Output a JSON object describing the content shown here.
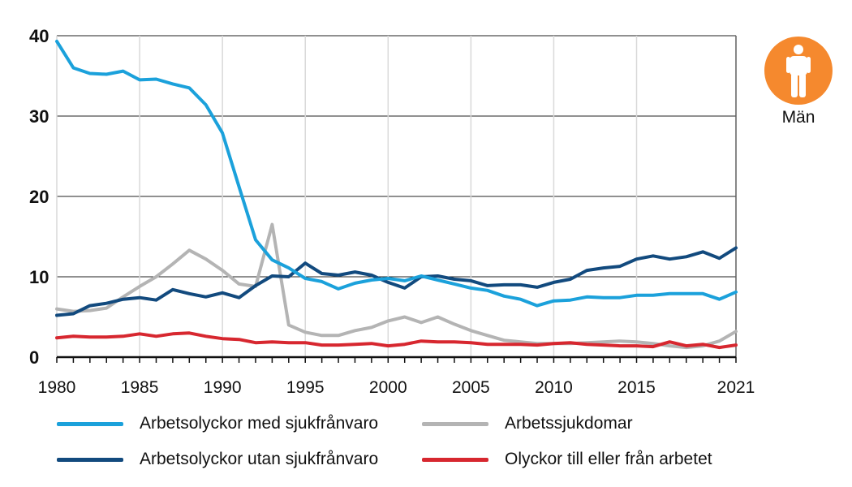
{
  "badge": {
    "label": "Män",
    "icon": "male-person-icon",
    "color": "#f5892e"
  },
  "colors": {
    "med": "#1ba1db",
    "utan": "#124a7e",
    "sjuk": "#b4b4b4",
    "olyckor": "#d7272f"
  },
  "chart_data": {
    "type": "line",
    "title": "",
    "xlabel": "",
    "ylabel": "",
    "xlim": [
      1980,
      2021
    ],
    "ylim": [
      0,
      40
    ],
    "yticks": [
      "0",
      "10",
      "20",
      "30",
      "40"
    ],
    "xticks": [
      "1980",
      "1985",
      "1990",
      "1995",
      "2000",
      "2005",
      "2010",
      "2015",
      "2021"
    ],
    "grid": "horizontal",
    "legend_position": "bottom",
    "x": [
      1980,
      1981,
      1982,
      1983,
      1984,
      1985,
      1986,
      1987,
      1988,
      1989,
      1990,
      1991,
      1992,
      1993,
      1994,
      1995,
      1996,
      1997,
      1998,
      1999,
      2000,
      2001,
      2002,
      2003,
      2004,
      2005,
      2006,
      2007,
      2008,
      2009,
      2010,
      2011,
      2012,
      2013,
      2014,
      2015,
      2016,
      2017,
      2018,
      2019,
      2020,
      2021
    ],
    "series": [
      {
        "name": "Arbetsolyckor med sjukfrånvaro",
        "color_key": "med",
        "values": [
          39.3,
          36.0,
          35.3,
          35.2,
          35.6,
          34.5,
          34.6,
          34.0,
          33.5,
          31.4,
          27.9,
          21.2,
          14.6,
          12.1,
          11.1,
          9.8,
          9.4,
          8.5,
          9.2,
          9.6,
          9.8,
          9.5,
          10.1,
          9.6,
          9.1,
          8.6,
          8.3,
          7.6,
          7.2,
          6.4,
          7.0,
          7.1,
          7.5,
          7.4,
          7.4,
          7.7,
          7.7,
          7.9,
          7.9,
          7.9,
          7.2,
          8.1
        ]
      },
      {
        "name": "Arbetsolyckor utan sjukfrånvaro",
        "color_key": "utan",
        "values": [
          5.2,
          5.4,
          6.4,
          6.7,
          7.2,
          7.4,
          7.1,
          8.4,
          7.9,
          7.5,
          8.0,
          7.4,
          8.9,
          10.1,
          10.0,
          11.7,
          10.4,
          10.2,
          10.6,
          10.2,
          9.3,
          8.6,
          10.0,
          10.1,
          9.7,
          9.5,
          8.9,
          9.0,
          9.0,
          8.7,
          9.3,
          9.7,
          10.8,
          11.1,
          11.3,
          12.2,
          12.6,
          12.2,
          12.5,
          13.1,
          12.3,
          13.6
        ]
      },
      {
        "name": "Arbetssjukdomar",
        "color_key": "sjuk",
        "values": [
          6.0,
          5.7,
          5.8,
          6.1,
          7.5,
          8.8,
          10.0,
          11.6,
          13.3,
          12.2,
          10.8,
          9.1,
          8.8,
          16.5,
          4.0,
          3.1,
          2.7,
          2.7,
          3.3,
          3.7,
          4.5,
          5.0,
          4.3,
          5.0,
          4.1,
          3.3,
          2.7,
          2.1,
          1.9,
          1.7,
          1.7,
          1.7,
          1.8,
          1.9,
          2.0,
          1.9,
          1.7,
          1.4,
          1.2,
          1.4,
          2.0,
          3.2
        ]
      },
      {
        "name": "Olyckor till eller från arbetet",
        "color_key": "olyckor",
        "values": [
          2.4,
          2.6,
          2.5,
          2.5,
          2.6,
          2.9,
          2.6,
          2.9,
          3.0,
          2.6,
          2.3,
          2.2,
          1.8,
          1.9,
          1.8,
          1.8,
          1.5,
          1.5,
          1.6,
          1.7,
          1.4,
          1.6,
          2.0,
          1.9,
          1.9,
          1.8,
          1.6,
          1.6,
          1.6,
          1.5,
          1.7,
          1.8,
          1.6,
          1.5,
          1.4,
          1.4,
          1.3,
          1.9,
          1.4,
          1.6,
          1.2,
          1.5
        ]
      }
    ]
  },
  "legend": [
    {
      "label": "Arbetsolyckor med sjukfrånvaro",
      "color_key": "med"
    },
    {
      "label": "Arbetssjukdomar",
      "color_key": "sjuk"
    },
    {
      "label": "Arbetsolyckor utan sjukfrånvaro",
      "color_key": "utan"
    },
    {
      "label": "Olyckor till eller från arbetet",
      "color_key": "olyckor"
    }
  ]
}
